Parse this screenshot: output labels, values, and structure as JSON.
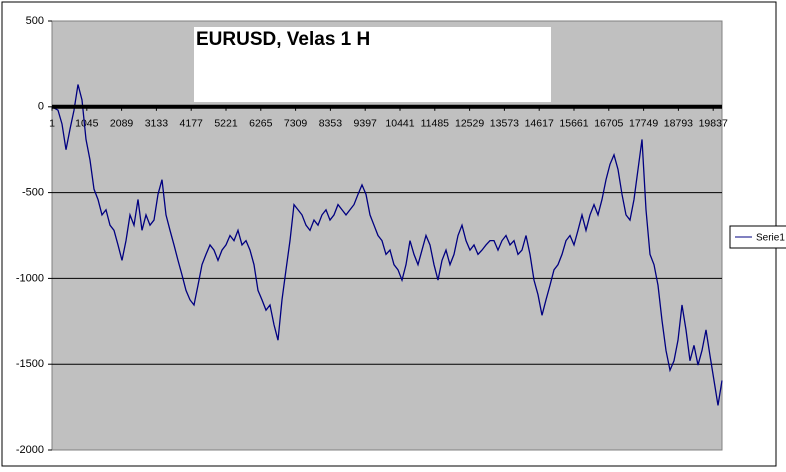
{
  "chart_data": {
    "type": "line",
    "title": "EURUSD, Velas 1 H",
    "x": [
      1,
      181,
      301,
      421,
      541,
      661,
      781,
      901,
      1021,
      1141,
      1261,
      1381,
      1501,
      1621,
      1741,
      1861,
      1981,
      2101,
      2221,
      2341,
      2461,
      2581,
      2701,
      2821,
      2941,
      3061,
      3181,
      3301,
      3421,
      3541,
      3661,
      3781,
      3901,
      4021,
      4141,
      4261,
      4381,
      4501,
      4621,
      4741,
      4861,
      4981,
      5101,
      5221,
      5341,
      5461,
      5581,
      5701,
      5821,
      5941,
      6061,
      6181,
      6301,
      6421,
      6541,
      6661,
      6781,
      6901,
      7021,
      7141,
      7261,
      7381,
      7501,
      7621,
      7741,
      7861,
      7981,
      8101,
      8221,
      8341,
      8461,
      8581,
      8701,
      8821,
      8941,
      9061,
      9181,
      9301,
      9421,
      9541,
      9661,
      9781,
      9901,
      10021,
      10141,
      10261,
      10381,
      10501,
      10621,
      10741,
      10861,
      10981,
      11101,
      11221,
      11341,
      11461,
      11581,
      11701,
      11821,
      11941,
      12061,
      12181,
      12301,
      12421,
      12541,
      12661,
      12781,
      12901,
      13021,
      13141,
      13261,
      13381,
      13501,
      13621,
      13741,
      13861,
      13981,
      14101,
      14221,
      14341,
      14461,
      14581,
      14701,
      14821,
      14941,
      15061,
      15181,
      15301,
      15421,
      15541,
      15661,
      15781,
      15901,
      16021,
      16141,
      16261,
      16381,
      16501,
      16621,
      16741,
      16861,
      16981,
      17101,
      17221,
      17341,
      17461,
      17581,
      17701,
      17821,
      17941,
      18061,
      18181,
      18301,
      18421,
      18541,
      18661,
      18781,
      18901,
      19021,
      19141,
      19261,
      19381,
      19501,
      19621,
      19741,
      19861,
      19981,
      20101
    ],
    "series": [
      {
        "name": "Serie1",
        "color": "#000080",
        "values": [
          0,
          -20,
          -100,
          -250,
          -130,
          -20,
          130,
          40,
          -190,
          -310,
          -480,
          -540,
          -630,
          -600,
          -690,
          -720,
          -805,
          -895,
          -780,
          -630,
          -690,
          -540,
          -720,
          -630,
          -690,
          -660,
          -510,
          -425,
          -630,
          -720,
          -805,
          -895,
          -980,
          -1070,
          -1125,
          -1155,
          -1040,
          -920,
          -860,
          -805,
          -835,
          -895,
          -835,
          -805,
          -750,
          -780,
          -720,
          -805,
          -780,
          -835,
          -920,
          -1070,
          -1125,
          -1185,
          -1155,
          -1270,
          -1360,
          -1125,
          -950,
          -780,
          -570,
          -600,
          -630,
          -690,
          -720,
          -660,
          -690,
          -630,
          -600,
          -660,
          -630,
          -570,
          -600,
          -630,
          -600,
          -570,
          -510,
          -455,
          -510,
          -630,
          -690,
          -750,
          -780,
          -860,
          -835,
          -920,
          -950,
          -1010,
          -920,
          -780,
          -860,
          -920,
          -835,
          -750,
          -805,
          -920,
          -1010,
          -895,
          -835,
          -920,
          -860,
          -750,
          -690,
          -780,
          -835,
          -805,
          -860,
          -835,
          -805,
          -780,
          -780,
          -835,
          -780,
          -750,
          -805,
          -780,
          -860,
          -835,
          -750,
          -860,
          -1010,
          -1095,
          -1215,
          -1125,
          -1040,
          -950,
          -920,
          -860,
          -780,
          -750,
          -805,
          -720,
          -630,
          -720,
          -630,
          -570,
          -630,
          -540,
          -425,
          -335,
          -280,
          -365,
          -510,
          -630,
          -660,
          -540,
          -365,
          -190,
          -600,
          -860,
          -920,
          -1040,
          -1245,
          -1420,
          -1535,
          -1480,
          -1360,
          -1155,
          -1300,
          -1480,
          -1390,
          -1505,
          -1420,
          -1300,
          -1450,
          -1595,
          -1740,
          -1595
        ]
      }
    ],
    "xlim": [
      1,
      20101
    ],
    "xticks": [
      1,
      1045,
      2089,
      3133,
      4177,
      5221,
      6265,
      7309,
      8353,
      9397,
      10441,
      11485,
      12529,
      13573,
      14617,
      15661,
      16705,
      17749,
      18793,
      19837
    ],
    "ylim": [
      -2000,
      500
    ],
    "yticks": [
      500,
      0,
      -500,
      -1000,
      -1500,
      -2000
    ],
    "grid": true,
    "legend": "right",
    "background": "#c0c0c0",
    "title_color": "#ff0000"
  }
}
